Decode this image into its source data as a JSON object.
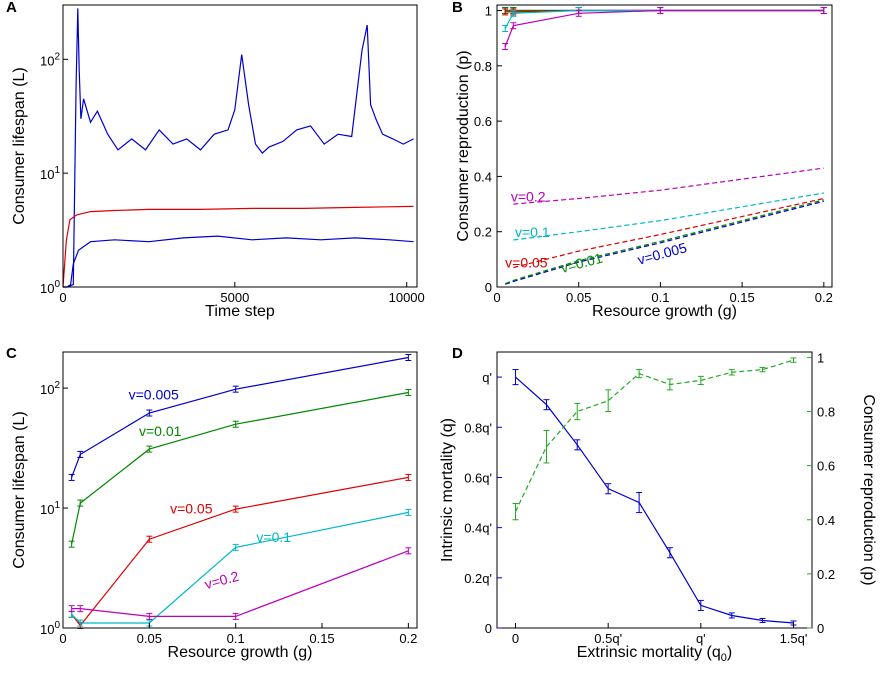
{
  "chart_data": [
    {
      "panel": "A",
      "type": "line",
      "xlabel": "Time step",
      "ylabel": "Consumer lifespan (L)",
      "xlim": [
        0,
        10300
      ],
      "ylim_log": [
        1,
        300
      ],
      "yscale": "log",
      "xticks": [
        0,
        5000,
        10000
      ],
      "yticks": [
        {
          "v": 1,
          "base": "10",
          "exp": "0"
        },
        {
          "v": 10,
          "base": "10",
          "exp": "1"
        },
        {
          "v": 100,
          "base": "10",
          "exp": "2"
        }
      ],
      "series": [
        {
          "color": "#0000cc",
          "x": [
            0,
            120,
            300,
            380,
            430,
            470,
            520,
            600,
            800,
            1000,
            1300,
            1600,
            2000,
            2400,
            2800,
            3200,
            3600,
            4000,
            4400,
            4800,
            5000,
            5200,
            5400,
            5600,
            5800,
            6000,
            6400,
            6800,
            7200,
            7600,
            8000,
            8400,
            8700,
            8850,
            8950,
            9100,
            9300,
            9600,
            9900,
            10200
          ],
          "y": [
            1.0,
            1.0,
            1.05,
            60,
            280,
            80,
            30,
            45,
            28,
            35,
            22,
            16,
            20,
            16,
            24,
            18,
            20,
            16,
            22,
            24,
            36,
            110,
            40,
            18,
            15,
            17,
            19,
            24,
            26,
            18,
            22,
            21,
            120,
            200,
            40,
            30,
            22,
            20,
            18,
            20
          ]
        },
        {
          "color": "#dd0000",
          "x": [
            0,
            100,
            200,
            400,
            800,
            1500,
            2500,
            4000,
            5500,
            7000,
            8500,
            10200
          ],
          "y": [
            1.0,
            2.6,
            3.9,
            4.3,
            4.6,
            4.7,
            4.8,
            4.8,
            4.9,
            4.9,
            5.0,
            5.1
          ]
        },
        {
          "color": "#0000cc",
          "x": [
            0,
            120,
            220,
            300,
            450,
            800,
            1500,
            2500,
            3500,
            4500,
            5500,
            6500,
            7500,
            8500,
            9500,
            10200
          ],
          "y": [
            1.0,
            1.0,
            1.05,
            1.6,
            2.1,
            2.5,
            2.6,
            2.5,
            2.7,
            2.8,
            2.6,
            2.7,
            2.6,
            2.7,
            2.6,
            2.5
          ]
        }
      ]
    },
    {
      "panel": "B",
      "type": "line",
      "xlabel": "Resource growth (g)",
      "ylabel": "Consumer reproduction (p)",
      "xlim": [
        0,
        0.205
      ],
      "ylim": [
        0,
        1.02
      ],
      "xticks": [
        0,
        0.05,
        0.1,
        0.15,
        0.2
      ],
      "yticks": [
        0,
        0.2,
        0.4,
        0.6,
        0.8,
        1
      ],
      "series": [
        {
          "name": "v=0.005",
          "color": "#0000cc",
          "dashed": false,
          "x": [
            0.005,
            0.01,
            0.05,
            0.1,
            0.2
          ],
          "y": [
            1.0,
            1.0,
            1.0,
            1.0,
            1.0
          ]
        },
        {
          "name": "v=0.01",
          "color": "#008800",
          "dashed": false,
          "x": [
            0.005,
            0.01,
            0.05,
            0.1,
            0.2
          ],
          "y": [
            1.0,
            1.0,
            1.0,
            1.0,
            1.0
          ]
        },
        {
          "name": "v=0.05",
          "color": "#dd0000",
          "dashed": false,
          "x": [
            0.005,
            0.01,
            0.05,
            0.1,
            0.2
          ],
          "y": [
            0.995,
            0.995,
            1.0,
            1.0,
            1.0
          ]
        },
        {
          "name": "v=0.1",
          "color": "#00b8c8",
          "dashed": false,
          "x": [
            0.005,
            0.01,
            0.05,
            0.1,
            0.2
          ],
          "y": [
            0.935,
            0.99,
            1.0,
            1.0,
            1.0
          ]
        },
        {
          "name": "v=0.2",
          "color": "#bb00bb",
          "dashed": false,
          "x": [
            0.005,
            0.01,
            0.05,
            0.1,
            0.2
          ],
          "y": [
            0.87,
            0.945,
            0.99,
            1.0,
            1.0
          ]
        },
        {
          "name": "v=0.005",
          "color": "#0000cc",
          "dashed": true,
          "x": [
            0.005,
            0.01,
            0.05,
            0.1,
            0.2
          ],
          "y": [
            0.01,
            0.02,
            0.09,
            0.16,
            0.31
          ]
        },
        {
          "name": "v=0.01",
          "color": "#008800",
          "dashed": true,
          "x": [
            0.005,
            0.01,
            0.05,
            0.1,
            0.2
          ],
          "y": [
            0.012,
            0.024,
            0.095,
            0.165,
            0.315
          ]
        },
        {
          "name": "v=0.05",
          "color": "#dd0000",
          "dashed": true,
          "x": [
            0.01,
            0.05,
            0.1,
            0.2
          ],
          "y": [
            0.07,
            0.13,
            0.19,
            0.32
          ]
        },
        {
          "name": "v=0.1",
          "color": "#00b8c8",
          "dashed": true,
          "x": [
            0.01,
            0.05,
            0.1,
            0.2
          ],
          "y": [
            0.17,
            0.2,
            0.24,
            0.34
          ]
        },
        {
          "name": "v=0.2",
          "color": "#bb00bb",
          "dashed": true,
          "x": [
            0.01,
            0.05,
            0.1,
            0.2
          ],
          "y": [
            0.3,
            0.32,
            0.35,
            0.43
          ]
        }
      ],
      "annotations": [
        {
          "text": "v=0.2",
          "color": "#bb00bb",
          "x": 0.0085,
          "y": 0.31
        },
        {
          "text": "v=0.1",
          "color": "#00b8c8",
          "x": 0.011,
          "y": 0.18
        },
        {
          "text": "v=0.05",
          "color": "#dd0000",
          "x": 0.005,
          "y": 0.07
        },
        {
          "text": "v=0.01",
          "color": "#008800",
          "x": 0.04,
          "y": 0.05,
          "rotate": -15
        },
        {
          "text": "v=0.005",
          "color": "#0000cc",
          "x": 0.087,
          "y": 0.08,
          "rotate": -15
        }
      ]
    },
    {
      "panel": "C",
      "type": "line",
      "xlabel": "Resource growth (g)",
      "ylabel": "Consumer lifespan (L)",
      "xlim": [
        0,
        0.205
      ],
      "ylim_log": [
        1,
        200
      ],
      "yscale": "log",
      "xticks": [
        0,
        0.05,
        0.1,
        0.15,
        0.2
      ],
      "yticks": [
        {
          "v": 1,
          "base": "10",
          "exp": "0"
        },
        {
          "v": 10,
          "base": "10",
          "exp": "1"
        },
        {
          "v": 100,
          "base": "10",
          "exp": "2"
        }
      ],
      "series": [
        {
          "name": "v=0.005",
          "color": "#0000cc",
          "x": [
            0.005,
            0.01,
            0.05,
            0.1,
            0.2
          ],
          "y": [
            18,
            28,
            62,
            98,
            180
          ]
        },
        {
          "name": "v=0.01",
          "color": "#008800",
          "x": [
            0.005,
            0.01,
            0.05,
            0.1,
            0.2
          ],
          "y": [
            5,
            11,
            31,
            50,
            92
          ]
        },
        {
          "name": "v=0.05",
          "color": "#dd0000",
          "x": [
            0.005,
            0.01,
            0.05,
            0.1,
            0.2
          ],
          "y": [
            1.3,
            1.05,
            5.5,
            9.8,
            18
          ]
        },
        {
          "name": "v=0.1",
          "color": "#00b8c8",
          "x": [
            0.005,
            0.01,
            0.05,
            0.1,
            0.2
          ],
          "y": [
            1.3,
            1.1,
            1.1,
            4.7,
            9.2
          ]
        },
        {
          "name": "v=0.2",
          "color": "#bb00bb",
          "x": [
            0.005,
            0.01,
            0.05,
            0.1,
            0.2
          ],
          "y": [
            1.45,
            1.45,
            1.25,
            1.25,
            4.4
          ]
        }
      ],
      "annotations": [
        {
          "text": "v=0.005",
          "color": "#0000cc",
          "x": 0.038,
          "y": 80
        },
        {
          "text": "v=0.01",
          "color": "#008800",
          "x": 0.044,
          "y": 40
        },
        {
          "text": "v=0.05",
          "color": "#dd0000",
          "x": 0.062,
          "y": 9
        },
        {
          "text": "v=0.1",
          "color": "#00b8c8",
          "x": 0.112,
          "y": 5.2
        },
        {
          "text": "v=0.2",
          "color": "#bb00bb",
          "x": 0.083,
          "y": 2.1,
          "rotate": -15
        }
      ]
    },
    {
      "panel": "D",
      "type": "line",
      "xlabel_main": "Extrinsic mortality (q",
      "xlabel_sub": "0",
      "xlabel_end": ")",
      "ylabel_left": "Intrinsic mortality (q)",
      "ylabel_right": "Consumer reproduction (p)",
      "xlim": [
        -0.1,
        1.6
      ],
      "ylim_left": [
        0,
        1.1
      ],
      "ylim_right": [
        0,
        1.02
      ],
      "xticks": [
        {
          "v": 0,
          "label": "0"
        },
        {
          "v": 0.5,
          "label": "0.5q'"
        },
        {
          "v": 1,
          "label": "q'"
        },
        {
          "v": 1.5,
          "label": "1.5q'"
        }
      ],
      "yticks_left": [
        {
          "v": 0,
          "label": "0"
        },
        {
          "v": 0.2,
          "label": "0.2q'"
        },
        {
          "v": 0.4,
          "label": "0.4q'"
        },
        {
          "v": 0.6,
          "label": "0.6q'"
        },
        {
          "v": 0.8,
          "label": "0.8q'"
        },
        {
          "v": 1,
          "label": "q'"
        }
      ],
      "yticks_right": [
        0,
        0.2,
        0.4,
        0.6,
        0.8,
        1
      ],
      "series": [
        {
          "name": "Intrinsic mortality (q)",
          "color": "#0000cc",
          "axis": "left",
          "dashed": false,
          "x": [
            0,
            0.167,
            0.333,
            0.5,
            0.667,
            0.833,
            1.0,
            1.167,
            1.333,
            1.5
          ],
          "y": [
            1.0,
            0.89,
            0.73,
            0.555,
            0.5,
            0.3,
            0.09,
            0.05,
            0.03,
            0.02
          ],
          "err": [
            0.03,
            0.02,
            0.02,
            0.02,
            0.04,
            0.02,
            0.02,
            0.01,
            0.008,
            0.008
          ]
        },
        {
          "name": "Consumer reproduction (p)",
          "color": "#22aa22",
          "axis": "right",
          "dashed": true,
          "x": [
            0,
            0.167,
            0.333,
            0.5,
            0.667,
            0.833,
            1.0,
            1.167,
            1.333,
            1.5
          ],
          "y": [
            0.43,
            0.67,
            0.8,
            0.84,
            0.94,
            0.9,
            0.915,
            0.945,
            0.955,
            0.99
          ],
          "err": [
            0.03,
            0.06,
            0.03,
            0.04,
            0.015,
            0.02,
            0.015,
            0.01,
            0.008,
            0.008
          ]
        }
      ]
    }
  ],
  "colors": {
    "left_axis_label": "#0000cc",
    "right_axis_label": "#22aa22"
  }
}
